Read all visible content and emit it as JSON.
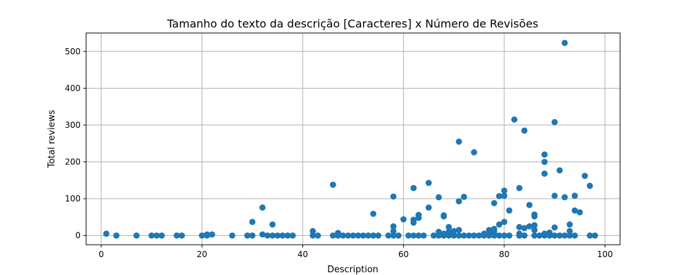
{
  "chart_data": {
    "type": "scatter",
    "title": "Tamanho do texto da descrição [Caracteres] x Número de Revisões",
    "xlabel": "Description",
    "ylabel": "Total reviews",
    "xlim": [
      -3,
      103
    ],
    "ylim": [
      -25,
      550
    ],
    "xticks": [
      0,
      20,
      40,
      60,
      80,
      100
    ],
    "yticks": [
      0,
      100,
      200,
      300,
      400,
      500
    ],
    "grid": true,
    "color": "#1f77b4",
    "points": [
      [
        1,
        5
      ],
      [
        3,
        0
      ],
      [
        7,
        0
      ],
      [
        10,
        0
      ],
      [
        11,
        0
      ],
      [
        12,
        0
      ],
      [
        15,
        0
      ],
      [
        16,
        0
      ],
      [
        20,
        0
      ],
      [
        21,
        0
      ],
      [
        21,
        3
      ],
      [
        22,
        3
      ],
      [
        26,
        0
      ],
      [
        29,
        0
      ],
      [
        30,
        0
      ],
      [
        30,
        37
      ],
      [
        32,
        76
      ],
      [
        32,
        3
      ],
      [
        33,
        0
      ],
      [
        34,
        0
      ],
      [
        34,
        30
      ],
      [
        35,
        0
      ],
      [
        36,
        0
      ],
      [
        37,
        0
      ],
      [
        38,
        0
      ],
      [
        42,
        0
      ],
      [
        42,
        12
      ],
      [
        43,
        0
      ],
      [
        46,
        0
      ],
      [
        46,
        138
      ],
      [
        47,
        0
      ],
      [
        47,
        7
      ],
      [
        48,
        0
      ],
      [
        49,
        0
      ],
      [
        50,
        0
      ],
      [
        51,
        0
      ],
      [
        52,
        0
      ],
      [
        53,
        0
      ],
      [
        54,
        0
      ],
      [
        54,
        59
      ],
      [
        55,
        0
      ],
      [
        57,
        0
      ],
      [
        58,
        0
      ],
      [
        58,
        12
      ],
      [
        58,
        25
      ],
      [
        58,
        106
      ],
      [
        59,
        0
      ],
      [
        60,
        44
      ],
      [
        61,
        0
      ],
      [
        62,
        0
      ],
      [
        62,
        35
      ],
      [
        62,
        43
      ],
      [
        62,
        129
      ],
      [
        63,
        0
      ],
      [
        63,
        48
      ],
      [
        63,
        56
      ],
      [
        64,
        0
      ],
      [
        65,
        76
      ],
      [
        65,
        143
      ],
      [
        66,
        0
      ],
      [
        67,
        0
      ],
      [
        67,
        10
      ],
      [
        67,
        104
      ],
      [
        68,
        0
      ],
      [
        68,
        5
      ],
      [
        68,
        52
      ],
      [
        68,
        55
      ],
      [
        69,
        0
      ],
      [
        69,
        5
      ],
      [
        69,
        10
      ],
      [
        69,
        23
      ],
      [
        70,
        0
      ],
      [
        70,
        12
      ],
      [
        71,
        0
      ],
      [
        71,
        15
      ],
      [
        71,
        93
      ],
      [
        71,
        255
      ],
      [
        72,
        0
      ],
      [
        72,
        105
      ],
      [
        73,
        0
      ],
      [
        74,
        0
      ],
      [
        74,
        226
      ],
      [
        75,
        0
      ],
      [
        76,
        0
      ],
      [
        76,
        5
      ],
      [
        77,
        0
      ],
      [
        77,
        10
      ],
      [
        77,
        15
      ],
      [
        78,
        0
      ],
      [
        78,
        5
      ],
      [
        78,
        12
      ],
      [
        78,
        18
      ],
      [
        78,
        88
      ],
      [
        79,
        0
      ],
      [
        79,
        30
      ],
      [
        79,
        107
      ],
      [
        80,
        0
      ],
      [
        80,
        37
      ],
      [
        80,
        108
      ],
      [
        80,
        122
      ],
      [
        81,
        0
      ],
      [
        81,
        68
      ],
      [
        82,
        315
      ],
      [
        83,
        0
      ],
      [
        83,
        5
      ],
      [
        83,
        23
      ],
      [
        83,
        129
      ],
      [
        84,
        0
      ],
      [
        84,
        20
      ],
      [
        84,
        285
      ],
      [
        85,
        25
      ],
      [
        85,
        83
      ],
      [
        86,
        0
      ],
      [
        86,
        15
      ],
      [
        86,
        28
      ],
      [
        86,
        52
      ],
      [
        86,
        57
      ],
      [
        87,
        0
      ],
      [
        88,
        0
      ],
      [
        88,
        5
      ],
      [
        88,
        168
      ],
      [
        88,
        200
      ],
      [
        88,
        220
      ],
      [
        89,
        0
      ],
      [
        89,
        8
      ],
      [
        90,
        0
      ],
      [
        90,
        22
      ],
      [
        90,
        108
      ],
      [
        90,
        308
      ],
      [
        91,
        0
      ],
      [
        91,
        177
      ],
      [
        92,
        0
      ],
      [
        92,
        104
      ],
      [
        92,
        523
      ],
      [
        93,
        0
      ],
      [
        93,
        12
      ],
      [
        93,
        30
      ],
      [
        94,
        0
      ],
      [
        94,
        68
      ],
      [
        94,
        108
      ],
      [
        95,
        63
      ],
      [
        96,
        162
      ],
      [
        97,
        0
      ],
      [
        97,
        135
      ],
      [
        98,
        0
      ]
    ]
  }
}
